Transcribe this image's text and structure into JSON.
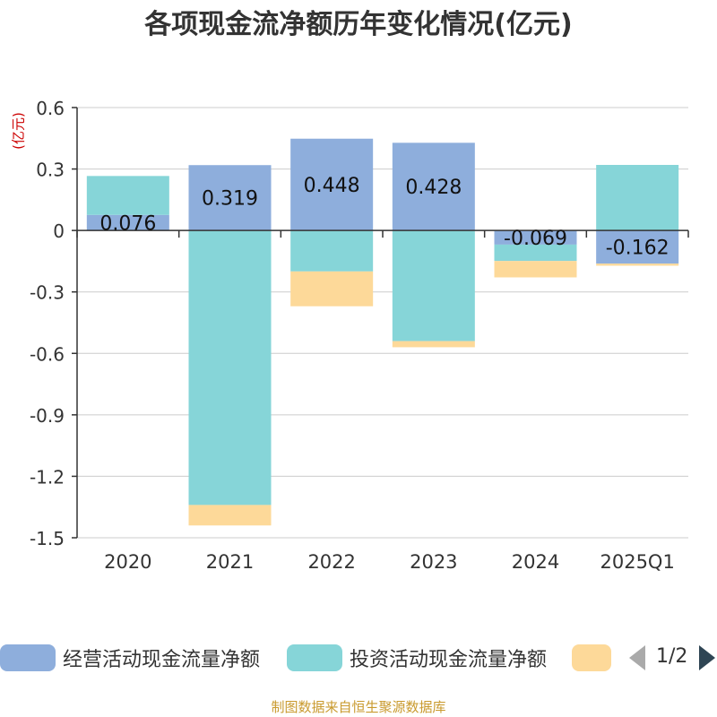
{
  "chart_data": {
    "type": "bar",
    "stacked": true,
    "title": "各项现金流净额历年变化情况(亿元)",
    "ylabel": "(亿元)",
    "categories": [
      "2020",
      "2021",
      "2022",
      "2023",
      "2024",
      "2025Q1"
    ],
    "ylim": [
      -1.5,
      0.6
    ],
    "yticks": [
      "0.6",
      "0.3",
      "0",
      "-0.3",
      "-0.6",
      "-0.9",
      "-1.2",
      "-1.5"
    ],
    "ytick_values": [
      0.6,
      0.3,
      0,
      -0.3,
      -0.6,
      -0.9,
      -1.2,
      -1.5
    ],
    "grid": true,
    "legend_position": "bottom",
    "series": [
      {
        "name": "经营活动现金流量净额",
        "color": "#8eaedc",
        "values": [
          0.076,
          0.319,
          0.448,
          0.428,
          -0.069,
          -0.162
        ],
        "labels": [
          "0.076",
          "0.319",
          "0.448",
          "0.428",
          "-0.069",
          "-0.162"
        ]
      },
      {
        "name": "投资活动现金流量净额",
        "color": "#86d5d8",
        "values": [
          0.19,
          -1.34,
          -0.2,
          -0.54,
          -0.08,
          0.32
        ]
      },
      {
        "name": "",
        "color": "#fdd999",
        "values": [
          0.0,
          -0.1,
          -0.17,
          -0.03,
          -0.08,
          -0.01
        ]
      }
    ]
  },
  "legend": {
    "pager": "1/2"
  },
  "source": "制图数据来自恒生聚源数据库"
}
